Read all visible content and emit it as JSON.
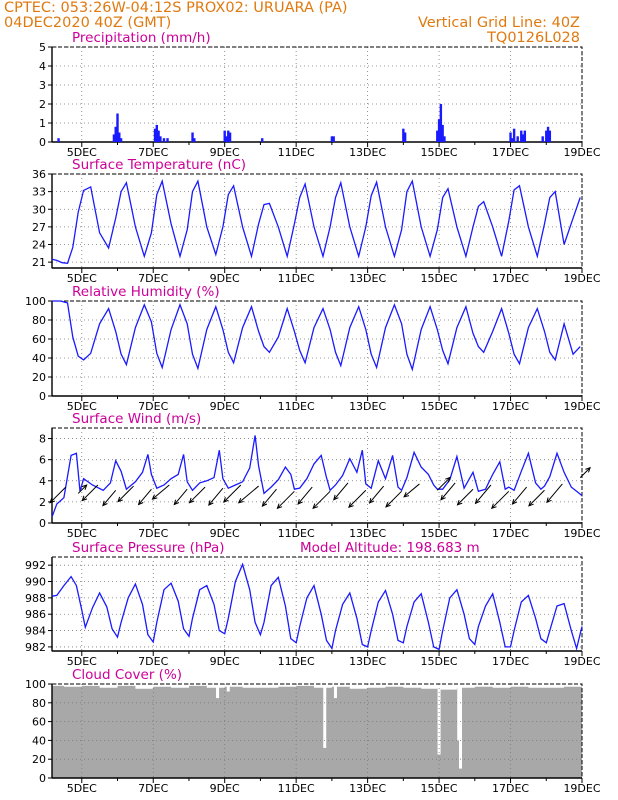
{
  "header": {
    "line1_left": "CPTEC:   053:26W-04:12S   PROX02: URUARA (PA)",
    "line2_left": "04DEC2020 40Z (GMT)",
    "line2_right": "Vertical Grid Line: 40Z",
    "line3_right": "TQ0126L028"
  },
  "colors": {
    "header": "#e07a10",
    "title": "#cc0099",
    "series": "#1a1aff",
    "cloud": "#a8a8a8",
    "arrow": "#000000"
  },
  "x_axis": {
    "labels": [
      "5DEC",
      "7DEC",
      "9DEC",
      "11DEC",
      "13DEC",
      "15DEC",
      "17DEC",
      "19DEC"
    ],
    "x_range_days": [
      4.1667,
      19.0
    ]
  },
  "panels": {
    "precip": {
      "title": "Precipitation (mm/h)"
    },
    "temp": {
      "title": "Surface Temperature (nC)"
    },
    "rh": {
      "title": "Relative Humidity (%)"
    },
    "wind": {
      "title": "Surface Wind (m/s)"
    },
    "press": {
      "title": "Surface Pressure (hPa)",
      "altitude": "Model Altitude: 198.683 m"
    },
    "cloud": {
      "title": "Cloud Cover (%)"
    }
  },
  "chart_data": [
    {
      "type": "bar",
      "title": "Precipitation (mm/h)",
      "ylim": [
        0,
        5
      ],
      "yticks": [
        0,
        1,
        2,
        3,
        4,
        5
      ],
      "x": [
        4.35,
        5.9,
        5.95,
        6.0,
        6.05,
        6.1,
        7.05,
        7.1,
        7.15,
        7.2,
        7.3,
        7.4,
        8.1,
        8.15,
        9.0,
        9.05,
        9.1,
        9.15,
        10.05,
        12.0,
        12.05,
        14.0,
        14.05,
        14.95,
        15.0,
        15.05,
        15.1,
        15.15,
        17.0,
        17.05,
        17.1,
        17.2,
        17.3,
        17.35,
        17.4,
        17.9,
        18.0,
        18.05,
        18.1
      ],
      "values": [
        0.2,
        0.4,
        0.8,
        1.5,
        0.5,
        0.2,
        0.7,
        0.9,
        0.6,
        0.3,
        0.2,
        0.2,
        0.5,
        0.2,
        0.6,
        0.3,
        0.6,
        0.5,
        0.2,
        0.3,
        0.3,
        0.7,
        0.5,
        0.6,
        1.2,
        2.0,
        0.9,
        0.3,
        0.5,
        0.2,
        0.7,
        0.3,
        0.6,
        0.4,
        0.6,
        0.3,
        0.6,
        0.8,
        0.6
      ]
    },
    {
      "type": "line",
      "title": "Surface Temperature (nC)",
      "ylim": [
        20,
        36
      ],
      "yticks": [
        21,
        24,
        27,
        30,
        33,
        36
      ],
      "x": [
        4.17,
        4.3,
        4.45,
        4.6,
        4.75,
        4.9,
        5.05,
        5.25,
        5.5,
        5.75,
        5.95,
        6.1,
        6.25,
        6.5,
        6.75,
        6.95,
        7.1,
        7.25,
        7.5,
        7.75,
        7.95,
        8.1,
        8.25,
        8.5,
        8.75,
        8.95,
        9.1,
        9.25,
        9.5,
        9.75,
        9.95,
        10.1,
        10.25,
        10.5,
        10.75,
        10.95,
        11.1,
        11.25,
        11.5,
        11.75,
        11.95,
        12.1,
        12.25,
        12.5,
        12.75,
        12.95,
        13.1,
        13.25,
        13.5,
        13.75,
        13.95,
        14.1,
        14.25,
        14.5,
        14.75,
        14.95,
        15.1,
        15.25,
        15.5,
        15.75,
        15.95,
        16.1,
        16.25,
        16.5,
        16.75,
        16.95,
        17.1,
        17.25,
        17.5,
        17.75,
        17.95,
        18.1,
        18.25,
        18.5,
        18.75,
        18.95
      ],
      "values": [
        21.5,
        21.3,
        20.9,
        20.8,
        23.5,
        29.5,
        33.2,
        33.8,
        26.0,
        23.4,
        28.5,
        33.0,
        34.5,
        27.0,
        22.0,
        26.0,
        32.5,
        34.8,
        27.5,
        22.0,
        26.5,
        33.0,
        34.8,
        27.0,
        22.3,
        27.0,
        32.5,
        34.0,
        27.0,
        22.0,
        27.5,
        30.8,
        31.0,
        27.0,
        22.0,
        27.5,
        32.0,
        34.3,
        27.0,
        22.0,
        27.0,
        32.0,
        34.5,
        27.0,
        22.0,
        27.0,
        32.3,
        34.6,
        27.0,
        22.0,
        26.5,
        33.0,
        34.8,
        27.0,
        22.0,
        26.5,
        32.0,
        33.5,
        27.0,
        22.0,
        27.0,
        30.5,
        31.3,
        27.0,
        22.0,
        28.0,
        33.3,
        34.0,
        27.0,
        22.0,
        27.5,
        32.0,
        33.0,
        24.0,
        28.5,
        32.0
      ]
    },
    {
      "type": "line",
      "title": "Relative Humidity (%)",
      "ylim": [
        0,
        100
      ],
      "yticks": [
        0,
        20,
        40,
        60,
        80,
        100
      ],
      "x": [
        4.17,
        4.4,
        4.6,
        4.75,
        4.9,
        5.05,
        5.25,
        5.5,
        5.75,
        5.95,
        6.1,
        6.25,
        6.5,
        6.75,
        6.95,
        7.1,
        7.25,
        7.5,
        7.75,
        7.95,
        8.1,
        8.25,
        8.5,
        8.75,
        8.95,
        9.1,
        9.25,
        9.5,
        9.75,
        9.95,
        10.1,
        10.25,
        10.5,
        10.75,
        10.95,
        11.1,
        11.25,
        11.5,
        11.75,
        11.95,
        12.1,
        12.25,
        12.5,
        12.75,
        12.95,
        13.1,
        13.25,
        13.5,
        13.75,
        13.95,
        14.1,
        14.25,
        14.5,
        14.75,
        14.95,
        15.1,
        15.25,
        15.5,
        15.75,
        15.95,
        16.1,
        16.25,
        16.5,
        16.75,
        16.95,
        17.1,
        17.25,
        17.5,
        17.75,
        17.95,
        18.1,
        18.25,
        18.5,
        18.75,
        18.95
      ],
      "values": [
        100,
        100,
        98,
        62,
        42,
        38,
        45,
        76,
        92,
        68,
        44,
        33,
        72,
        96,
        78,
        45,
        30,
        70,
        96,
        76,
        44,
        29,
        70,
        94,
        70,
        46,
        35,
        72,
        94,
        68,
        52,
        46,
        62,
        92,
        68,
        48,
        35,
        72,
        92,
        70,
        46,
        32,
        72,
        94,
        70,
        44,
        30,
        72,
        96,
        76,
        44,
        28,
        70,
        94,
        70,
        48,
        34,
        72,
        94,
        66,
        52,
        46,
        68,
        92,
        66,
        44,
        34,
        72,
        92,
        68,
        46,
        38,
        76,
        44,
        52
      ]
    },
    {
      "type": "line",
      "title": "Surface Wind (m/s)",
      "ylim": [
        0,
        9
      ],
      "yticks": [
        0,
        2,
        4,
        6,
        8
      ],
      "x": [
        4.17,
        4.3,
        4.5,
        4.7,
        4.85,
        4.95,
        5.05,
        5.3,
        5.6,
        5.8,
        5.95,
        6.1,
        6.25,
        6.5,
        6.7,
        6.85,
        6.95,
        7.1,
        7.3,
        7.5,
        7.7,
        7.85,
        7.95,
        8.1,
        8.3,
        8.5,
        8.7,
        8.85,
        8.95,
        9.1,
        9.3,
        9.5,
        9.7,
        9.85,
        9.95,
        10.1,
        10.3,
        10.5,
        10.7,
        10.85,
        10.95,
        11.1,
        11.3,
        11.5,
        11.7,
        11.85,
        11.95,
        12.1,
        12.3,
        12.5,
        12.7,
        12.85,
        12.95,
        13.1,
        13.3,
        13.5,
        13.7,
        13.85,
        13.95,
        14.1,
        14.3,
        14.5,
        14.7,
        14.85,
        14.95,
        15.1,
        15.3,
        15.5,
        15.7,
        15.85,
        15.95,
        16.1,
        16.3,
        16.5,
        16.7,
        16.85,
        16.95,
        17.1,
        17.3,
        17.5,
        17.7,
        17.85,
        17.95,
        18.1,
        18.3,
        18.5,
        18.7,
        18.85,
        19.0
      ],
      "values": [
        0.6,
        1.8,
        2.4,
        6.4,
        6.6,
        3.0,
        4.2,
        3.6,
        3.1,
        3.8,
        5.9,
        4.9,
        3.2,
        3.9,
        4.8,
        6.5,
        4.6,
        3.3,
        3.6,
        4.2,
        4.6,
        6.5,
        3.9,
        3.1,
        3.8,
        4.0,
        4.3,
        6.9,
        4.2,
        3.3,
        3.6,
        3.9,
        5.2,
        8.3,
        5.4,
        2.8,
        3.4,
        4.1,
        5.3,
        4.6,
        3.2,
        3.3,
        4.2,
        5.6,
        6.4,
        4.3,
        3.1,
        3.6,
        4.5,
        6.1,
        4.8,
        6.9,
        3.7,
        3.3,
        5.9,
        4.2,
        6.4,
        3.4,
        3.1,
        4.3,
        6.7,
        5.3,
        4.6,
        3.6,
        3.2,
        3.2,
        4.1,
        6.3,
        3.3,
        4.2,
        4.8,
        3.0,
        3.2,
        4.6,
        5.8,
        3.2,
        3.4,
        3.1,
        4.9,
        6.6,
        3.8,
        3.2,
        3.5,
        4.4,
        6.6,
        4.8,
        3.4,
        3.0,
        2.6
      ],
      "arrows": {
        "x": [
          4.55,
          4.9,
          5.45,
          5.95,
          6.45,
          6.95,
          7.45,
          7.95,
          8.45,
          8.95,
          9.45,
          9.95,
          10.45,
          10.95,
          11.45,
          11.95,
          12.45,
          12.95,
          13.45,
          13.95,
          14.45,
          14.95,
          15.45,
          15.95,
          16.45,
          16.95,
          17.45,
          17.95,
          18.45,
          18.95
        ],
        "y": [
          3.4,
          2.8,
          3.6,
          3.1,
          3.5,
          3.2,
          3.6,
          3.2,
          3.4,
          3.3,
          3.6,
          3.5,
          3.2,
          3.0,
          3.4,
          3.0,
          3.8,
          3.1,
          3.5,
          3.0,
          3.7,
          3.1,
          3.8,
          3.2,
          3.6,
          3.0,
          3.4,
          3.1,
          3.7,
          4.3
        ],
        "dir_deg": [
          225,
          45,
          225,
          230,
          225,
          230,
          220,
          230,
          225,
          230,
          225,
          220,
          230,
          225,
          230,
          225,
          230,
          225,
          230,
          225,
          220,
          45,
          230,
          225,
          230,
          225,
          230,
          225,
          230,
          45
        ],
        "len_px": [
          22,
          12,
          22,
          20,
          22,
          20,
          22,
          20,
          22,
          22,
          24,
          26,
          22,
          24,
          22,
          24,
          22,
          24,
          22,
          22,
          20,
          18,
          22,
          22,
          24,
          24,
          22,
          22,
          24,
          14
        ]
      }
    },
    {
      "type": "line",
      "title": "Surface Pressure (hPa)",
      "ylim": [
        981.5,
        993
      ],
      "yticks": [
        982,
        984,
        986,
        988,
        990,
        992
      ],
      "x": [
        4.17,
        4.3,
        4.5,
        4.7,
        4.85,
        5.0,
        5.1,
        5.3,
        5.5,
        5.7,
        5.85,
        6.0,
        6.1,
        6.3,
        6.5,
        6.7,
        6.85,
        7.0,
        7.1,
        7.3,
        7.5,
        7.7,
        7.85,
        8.0,
        8.1,
        8.3,
        8.5,
        8.7,
        8.85,
        9.0,
        9.1,
        9.3,
        9.5,
        9.7,
        9.85,
        10.0,
        10.1,
        10.3,
        10.5,
        10.7,
        10.85,
        11.0,
        11.1,
        11.3,
        11.5,
        11.7,
        11.85,
        12.0,
        12.1,
        12.3,
        12.5,
        12.7,
        12.85,
        13.0,
        13.1,
        13.3,
        13.5,
        13.7,
        13.85,
        14.0,
        14.1,
        14.3,
        14.5,
        14.7,
        14.85,
        15.0,
        15.1,
        15.3,
        15.5,
        15.7,
        15.85,
        16.0,
        16.1,
        16.3,
        16.5,
        16.7,
        16.85,
        17.0,
        17.1,
        17.3,
        17.5,
        17.7,
        17.85,
        18.0,
        18.1,
        18.3,
        18.5,
        18.7,
        18.85,
        19.0
      ],
      "values": [
        988.2,
        988.3,
        989.5,
        990.6,
        989.5,
        986.5,
        984.4,
        986.8,
        988.6,
        986.9,
        984.2,
        983.2,
        985.0,
        988.0,
        989.7,
        987.2,
        983.5,
        982.6,
        985.0,
        989.0,
        989.8,
        987.6,
        984.2,
        983.3,
        985.5,
        989.0,
        989.5,
        987.2,
        984.0,
        983.6,
        985.5,
        990.0,
        992.1,
        989.0,
        985.0,
        983.5,
        985.0,
        989.5,
        990.5,
        987.0,
        983.0,
        982.5,
        984.5,
        988.0,
        989.5,
        986.0,
        982.8,
        981.8,
        984.0,
        987.2,
        988.6,
        985.5,
        982.3,
        982.0,
        984.0,
        987.5,
        988.9,
        986.0,
        982.8,
        982.5,
        984.5,
        987.5,
        988.5,
        985.0,
        982.0,
        981.7,
        984.0,
        988.0,
        989.0,
        986.0,
        983.0,
        982.3,
        984.5,
        987.0,
        988.5,
        985.0,
        982.0,
        982.0,
        984.0,
        987.5,
        988.3,
        985.5,
        983.0,
        982.5,
        984.0,
        987.0,
        987.3,
        984.0,
        981.8,
        984.5
      ]
    },
    {
      "type": "bar",
      "title": "Cloud Cover (%)",
      "ylim": [
        0,
        100
      ],
      "yticks": [
        0,
        20,
        40,
        60,
        80,
        100
      ],
      "x": [
        4.25,
        4.75,
        5.25,
        5.75,
        6.25,
        6.75,
        7.25,
        7.75,
        8.25,
        8.75,
        9.25,
        9.75,
        10.25,
        10.75,
        11.25,
        11.75,
        12.25,
        12.75,
        13.25,
        13.75,
        14.25,
        14.75,
        15.25,
        15.75,
        16.25,
        16.75,
        17.25,
        17.75,
        18.25,
        18.75
      ],
      "values": [
        98,
        97,
        98,
        96,
        98,
        95,
        97,
        96,
        98,
        96,
        97,
        96,
        96,
        97,
        98,
        96,
        97,
        95,
        96,
        97,
        96,
        95,
        94,
        96,
        97,
        96,
        97,
        96,
        96,
        97
      ],
      "dips": {
        "x": [
          8.8,
          9.1,
          11.8,
          12.1,
          15.0,
          15.55,
          15.6
        ],
        "values": [
          85,
          92,
          32,
          85,
          25,
          40,
          10
        ]
      }
    }
  ]
}
